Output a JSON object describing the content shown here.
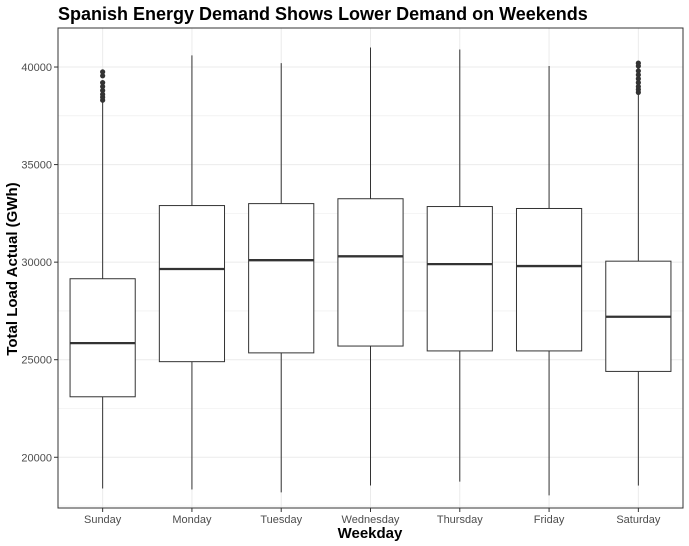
{
  "chart_data": {
    "type": "boxplot",
    "title": "Spanish Energy Demand Shows Lower Demand on Weekends",
    "xlabel": "Weekday",
    "ylabel": "Total Load Actual (GWh)",
    "ylim": [
      17400,
      42000
    ],
    "yticks": [
      20000,
      25000,
      30000,
      35000,
      40000
    ],
    "grid": true,
    "categories": [
      "Sunday",
      "Monday",
      "Tuesday",
      "Wednesday",
      "Thursday",
      "Friday",
      "Saturday"
    ],
    "boxes": [
      {
        "category": "Sunday",
        "whisker_low": 18400,
        "q1": 23100,
        "median": 25850,
        "q3": 29150,
        "whisker_high": 38200,
        "outliers": [
          38300,
          38450,
          38600,
          38800,
          39000,
          39200,
          39550,
          39750
        ]
      },
      {
        "category": "Monday",
        "whisker_low": 18350,
        "q1": 24900,
        "median": 29650,
        "q3": 32900,
        "whisker_high": 40600,
        "outliers": []
      },
      {
        "category": "Tuesday",
        "whisker_low": 18200,
        "q1": 25350,
        "median": 30100,
        "q3": 33000,
        "whisker_high": 40200,
        "outliers": []
      },
      {
        "category": "Wednesday",
        "whisker_low": 18550,
        "q1": 25700,
        "median": 30300,
        "q3": 33250,
        "whisker_high": 41000,
        "outliers": []
      },
      {
        "category": "Thursday",
        "whisker_low": 18750,
        "q1": 25450,
        "median": 29900,
        "q3": 32850,
        "whisker_high": 40900,
        "outliers": []
      },
      {
        "category": "Friday",
        "whisker_low": 18050,
        "q1": 25450,
        "median": 29800,
        "q3": 32750,
        "whisker_high": 40050,
        "outliers": []
      },
      {
        "category": "Saturday",
        "whisker_low": 18550,
        "q1": 24400,
        "median": 27200,
        "q3": 30050,
        "whisker_high": 38600,
        "outliers": [
          38700,
          38850,
          39000,
          39200,
          39400,
          39600,
          39800,
          40050,
          40200
        ]
      }
    ],
    "colors": {
      "box_fill": "#ffffff",
      "box_stroke": "#333333",
      "grid": "#ebebeb",
      "panel_border": "#333333"
    }
  }
}
